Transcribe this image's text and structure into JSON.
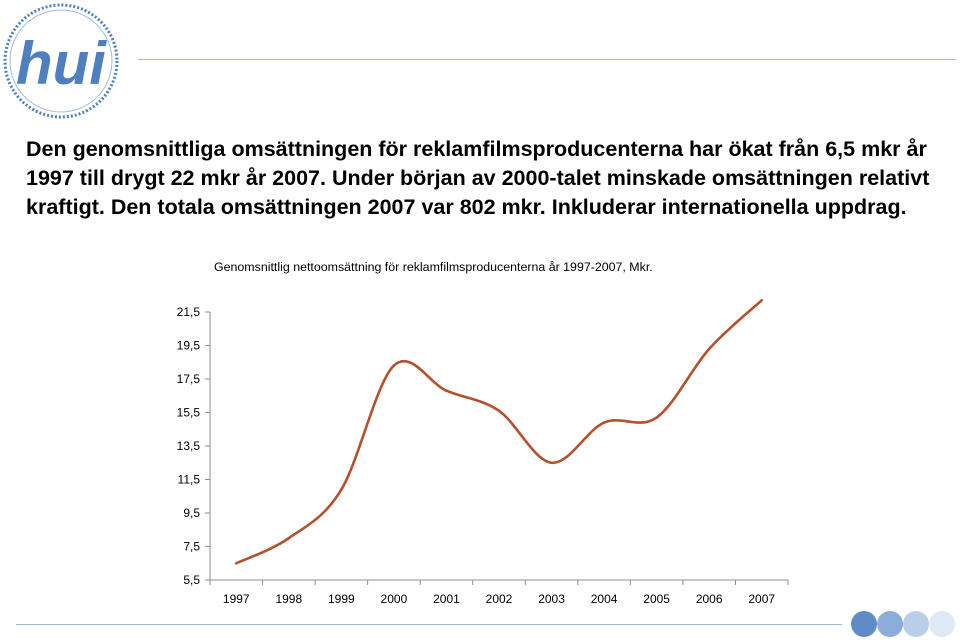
{
  "headline": {
    "line1": "Den genomsnittliga omsättningen för reklamfilmsproducenterna har ökat från 6,5 mkr år",
    "line2": "1997 till drygt 22 mkr år 2007. Under början av 2000-talet minskade omsättningen relativt",
    "line3": "kraftigt.  Den totala omsättningen 2007 var 802 mkr. Inkluderar internationella uppdrag."
  },
  "logo": {
    "icon": "hui-logo",
    "text": "hui"
  },
  "colors": {
    "line": "#b5502d",
    "rule": "#9fb6d6",
    "logo_blue": "#4e7fc0"
  },
  "chart_data": {
    "type": "line",
    "title": "Genomsnittlig nettoomsättning för reklamfilmsproducenterna år 1997-2007, Mkr.",
    "categories": [
      "1997",
      "1998",
      "1999",
      "2000",
      "2001",
      "2002",
      "2003",
      "2004",
      "2005",
      "2006",
      "2007"
    ],
    "series": [
      {
        "values": [
          6.5,
          8.0,
          10.9,
          18.3,
          16.8,
          15.6,
          12.5,
          14.9,
          15.2,
          19.3,
          22.2
        ]
      }
    ],
    "ylim": [
      5.5,
      21.5
    ],
    "yticks": [
      "21,5",
      "19,5",
      "17,5",
      "15,5",
      "13,5",
      "11,5",
      "9,5",
      "7,5",
      "5,5"
    ],
    "grid": false,
    "legend": "none"
  }
}
